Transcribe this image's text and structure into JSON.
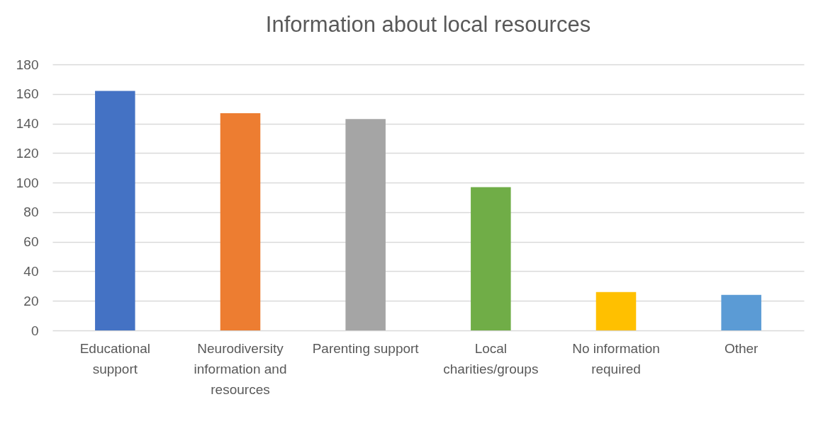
{
  "chart_data": {
    "type": "bar",
    "title": "Information about local resources",
    "categories": [
      "Educational support",
      "Neurodiversity information and resources",
      "Parenting support",
      "Local charities/groups",
      "No information required",
      "Other"
    ],
    "values": [
      162,
      147,
      143,
      97,
      26,
      24
    ],
    "colors": [
      "#4472c4",
      "#ed7d31",
      "#a5a5a5",
      "#70ad47",
      "#ffc000",
      "#5b9bd5"
    ],
    "ylim": [
      0,
      180
    ],
    "yticks": [
      0,
      20,
      40,
      60,
      80,
      100,
      120,
      140,
      160,
      180
    ],
    "grid": "y"
  }
}
